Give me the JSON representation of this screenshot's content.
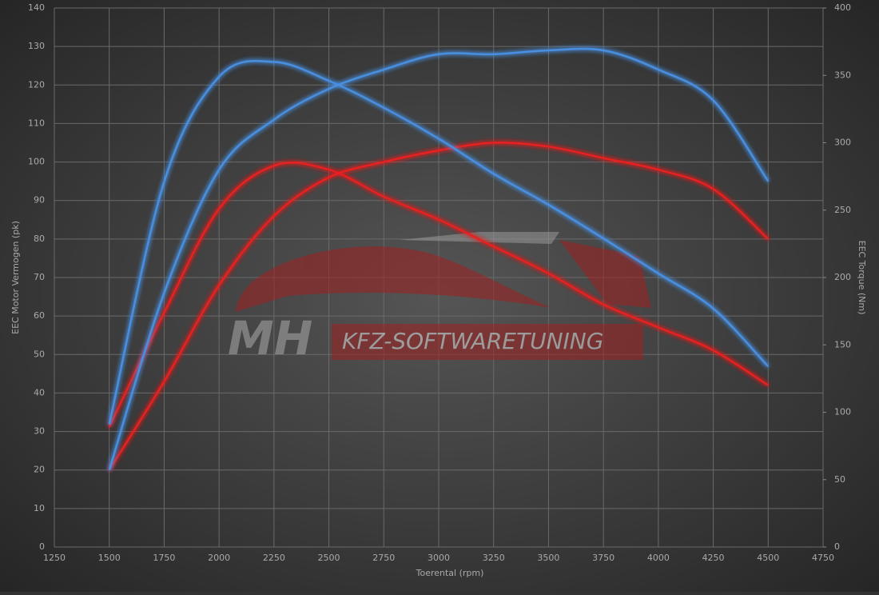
{
  "chart_data": {
    "type": "line",
    "xlabel": "Toerental (rpm)",
    "ylabel": "EEC Motor Vermogen (pk)",
    "y2label": "EEC Torque (Nm)",
    "watermark": [
      "MH",
      "KFZ-SOFTWARETUNING"
    ],
    "x": [
      1500,
      1750,
      2000,
      2250,
      2500,
      2750,
      3000,
      3250,
      3500,
      3750,
      4000,
      4250,
      4500
    ],
    "series": [
      {
        "color": "#4a8fe0",
        "values": [
          20,
          66,
          98,
          111,
          119,
          124,
          128,
          128,
          129,
          129,
          124,
          116,
          95
        ]
      },
      {
        "color": "#4a8fe0",
        "axis": "y2",
        "values": [
          91,
          271,
          349,
          360,
          346,
          326,
          303,
          277,
          254,
          229,
          203,
          177,
          134
        ]
      },
      {
        "color": "#e52222",
        "values": [
          20,
          43,
          68,
          86,
          96,
          100,
          103,
          105,
          104,
          101,
          98,
          93,
          80
        ]
      },
      {
        "color": "#e52222",
        "axis": "y2",
        "values": [
          89,
          174,
          251,
          283,
          280,
          260,
          243,
          223,
          203,
          180,
          163,
          146,
          120
        ]
      }
    ],
    "xlim": [
      1250,
      4750
    ],
    "xticks": [
      1250,
      1500,
      1750,
      2000,
      2250,
      2500,
      2750,
      3000,
      3250,
      3500,
      3750,
      4000,
      4250,
      4500,
      4750
    ],
    "ylim": [
      0,
      140
    ],
    "yticks": [
      0,
      10,
      20,
      30,
      40,
      50,
      60,
      70,
      80,
      90,
      100,
      110,
      120,
      130,
      140
    ],
    "y2lim": [
      0,
      400
    ],
    "y2ticks": [
      0,
      50,
      100,
      150,
      200,
      250,
      300,
      350,
      400
    ],
    "grid": true
  }
}
